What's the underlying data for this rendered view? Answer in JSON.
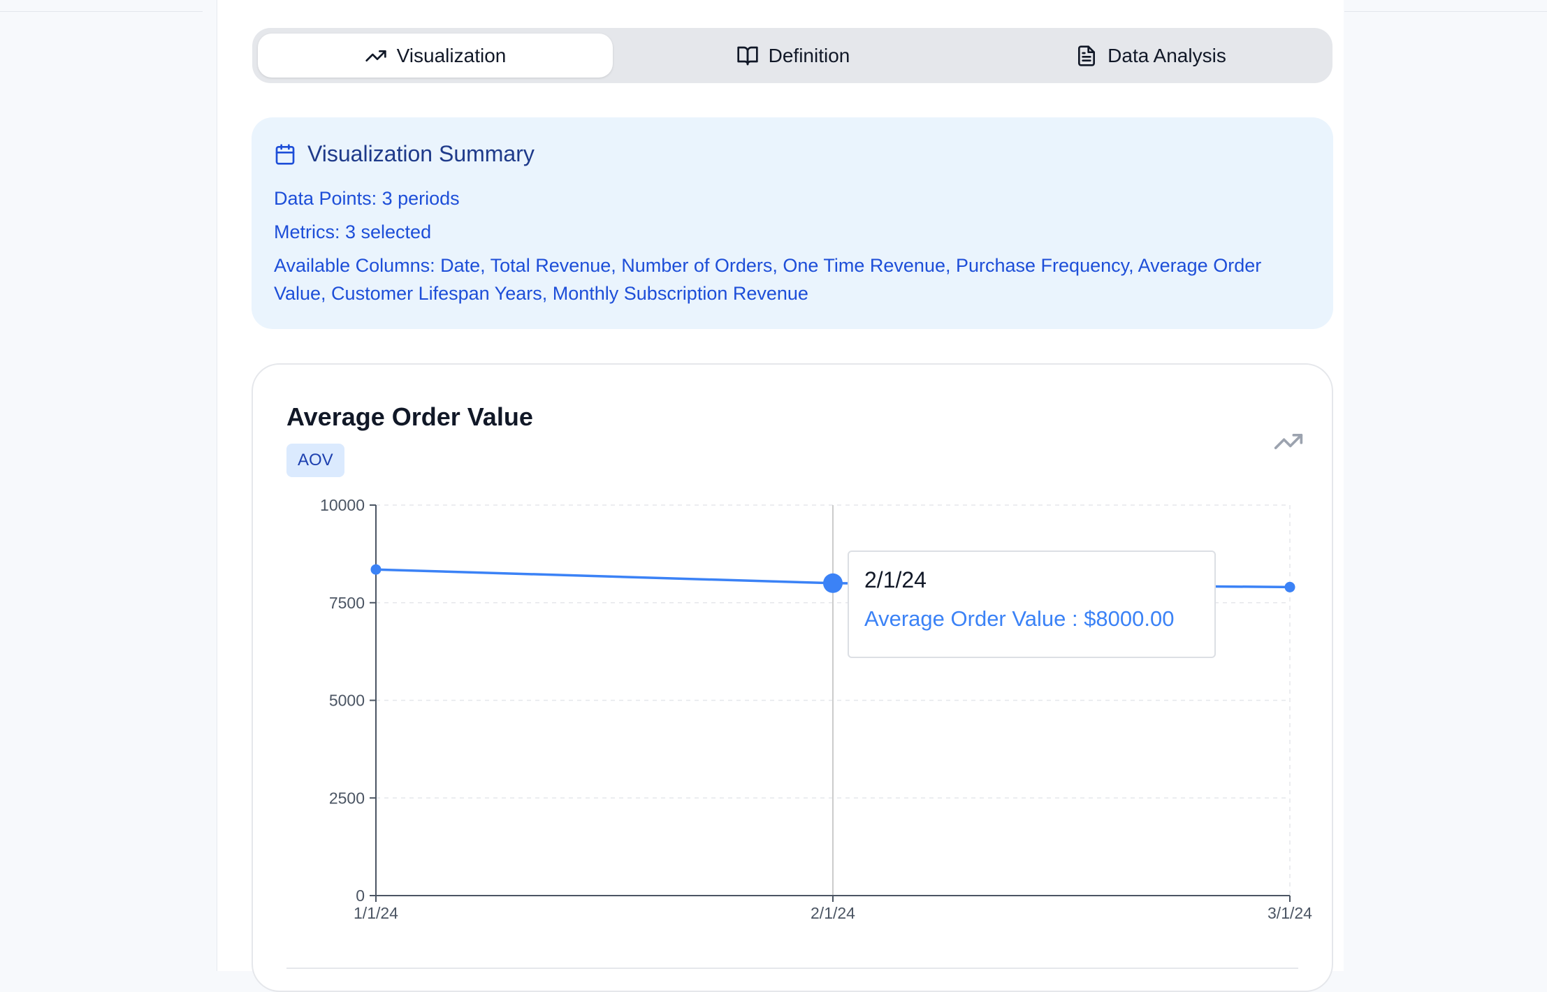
{
  "tabs": [
    {
      "label": "Visualization",
      "icon": "trending-up-icon",
      "active": true
    },
    {
      "label": "Definition",
      "icon": "book-open-icon",
      "active": false
    },
    {
      "label": "Data Analysis",
      "icon": "file-text-icon",
      "active": false
    }
  ],
  "summary": {
    "title": "Visualization Summary",
    "icon": "calendar-icon",
    "data_points": "Data Points: 3 periods",
    "metrics": "Metrics: 3 selected",
    "available_columns": "Available Columns: Date, Total Revenue, Number of Orders, One Time Revenue, Purchase Frequency, Average Order Value, Customer Lifespan Years, Monthly Subscription Revenue"
  },
  "card": {
    "title": "Average Order Value",
    "badge": "AOV",
    "icon": "trending-up-icon"
  },
  "chart_data": {
    "type": "line",
    "x": [
      "1/1/24",
      "2/1/24",
      "3/1/24"
    ],
    "series": [
      {
        "name": "Average Order Value",
        "values": [
          8350,
          8000,
          7900
        ],
        "color": "#3b82f6"
      }
    ],
    "y_ticks": [
      "0",
      "2500",
      "5000",
      "7500",
      "10000"
    ],
    "ylim": [
      0,
      10000
    ],
    "grid": true,
    "highlighted_index": 1
  },
  "tooltip": {
    "label": "2/1/24",
    "value": "Average Order Value : $8000.00"
  },
  "colors": {
    "accent": "#3b82f6",
    "summary_bg": "#eaf4fd",
    "summary_text": "#1d4ed8",
    "badge_bg": "#dbeafe"
  }
}
